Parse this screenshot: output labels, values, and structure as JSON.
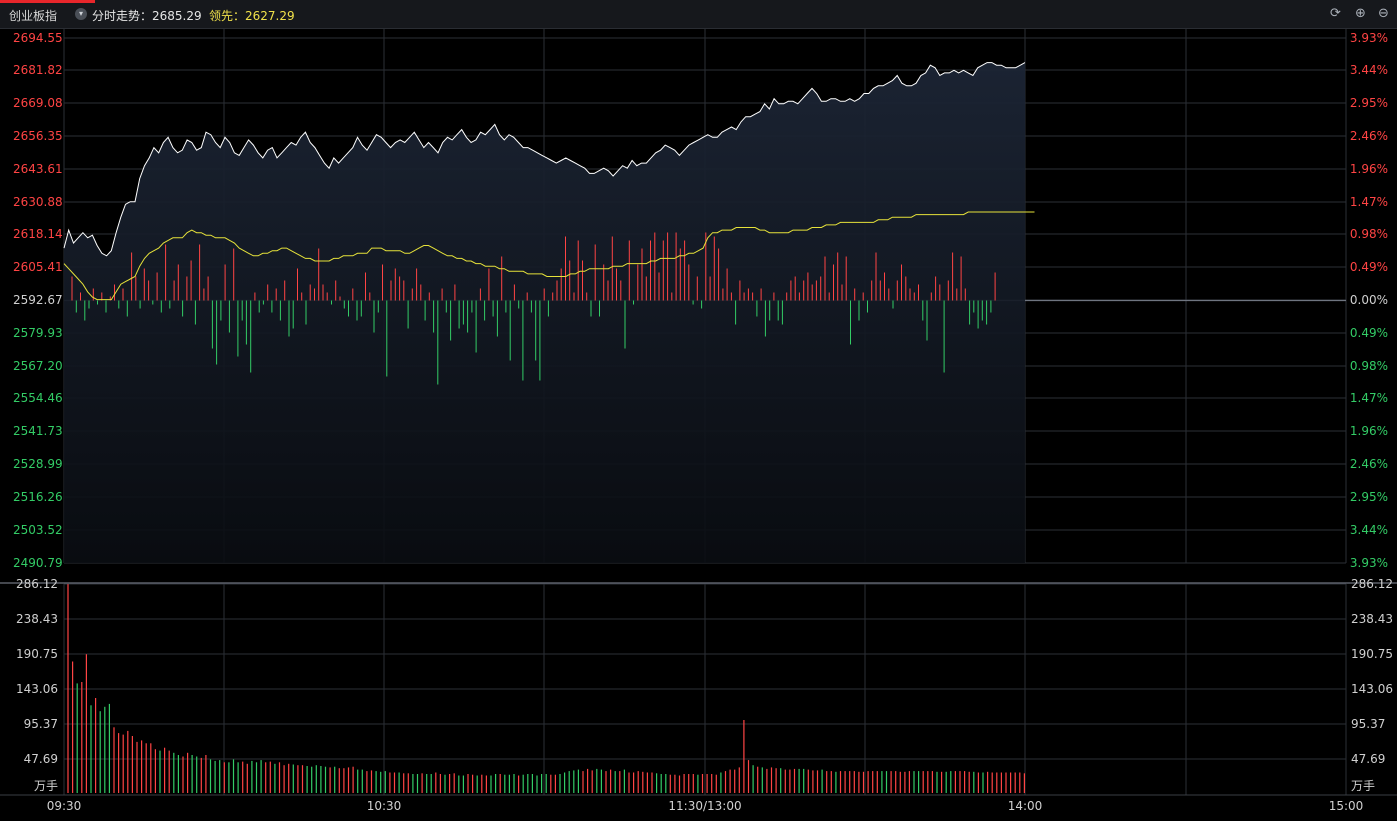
{
  "header": {
    "title": "创业板指",
    "trend_label": "分时走势：2685.29",
    "leader_label": "领先：2627.29"
  },
  "colors": {
    "up": "#ff4444",
    "down": "#33cc66",
    "price_line": "#ffffff",
    "lead_line": "#e6e23a",
    "grid": "#2b2f36"
  },
  "chart_data": [
    {
      "type": "line",
      "title": "",
      "base_price": 2592.67,
      "y_ticks_left": [
        "2694.55",
        "2681.82",
        "2669.08",
        "2656.35",
        "2643.61",
        "2630.88",
        "2618.14",
        "2605.41",
        "2592.67",
        "2579.93",
        "2567.20",
        "2554.46",
        "2541.73",
        "2528.99",
        "2516.26",
        "2503.52",
        "2490.79"
      ],
      "y_ticks_right": [
        "3.93%",
        "3.44%",
        "2.95%",
        "2.46%",
        "1.96%",
        "1.47%",
        "0.98%",
        "0.49%",
        "0.00%",
        "0.49%",
        "0.98%",
        "1.47%",
        "1.96%",
        "2.46%",
        "2.95%",
        "3.44%",
        "3.93%"
      ],
      "ylim": [
        2490.79,
        2694.55
      ],
      "x_ticks": [
        "09:30",
        "10:30",
        "11:30/13:00",
        "14:00",
        "15:00"
      ],
      "series": [
        {
          "values": [
            2613,
            2620,
            2615,
            2617,
            2619,
            2617,
            2618,
            2614,
            2611,
            2610,
            2612,
            2619,
            2625,
            2630,
            2631,
            2631,
            2640,
            2645,
            2648,
            2652,
            2650,
            2654,
            2656,
            2652,
            2650,
            2651,
            2655,
            2654,
            2651,
            2652,
            2658,
            2657,
            2654,
            2652,
            2656,
            2654,
            2650,
            2649,
            2652,
            2655,
            2653,
            2650,
            2648,
            2651,
            2652,
            2648,
            2650,
            2652,
            2654,
            2653,
            2656,
            2658,
            2654,
            2652,
            2649,
            2646,
            2644,
            2648,
            2646,
            2648,
            2650,
            2652,
            2656,
            2653,
            2651,
            2654,
            2657,
            2656,
            2654,
            2652,
            2654,
            2655,
            2654,
            2656,
            2658,
            2655,
            2652,
            2654,
            2652,
            2650,
            2654,
            2656,
            2655,
            2657,
            2659,
            2656,
            2654,
            2655,
            2658,
            2657,
            2659,
            2661,
            2657,
            2655,
            2657,
            2656,
            2654,
            2652,
            2652,
            2651,
            2650,
            2649,
            2648,
            2647,
            2646,
            2647,
            2648,
            2647,
            2646,
            2645,
            2644,
            2642,
            2642,
            2643,
            2644,
            2643,
            2641,
            2643,
            2645,
            2644,
            2647,
            2645,
            2646,
            2646,
            2648,
            2650,
            2651,
            2653,
            2652,
            2651,
            2649,
            2651,
            2653,
            2654,
            2655,
            2656,
            2657,
            2656,
            2656,
            2658,
            2659,
            2660,
            2659,
            2662,
            2664,
            2664,
            2665,
            2666,
            2669,
            2667,
            2671,
            2669,
            2669,
            2670,
            2670,
            2669,
            2671,
            2673,
            2675,
            2673,
            2670,
            2670,
            2671,
            2671,
            2670,
            2670,
            2671,
            2670,
            2671,
            2673,
            2673,
            2675,
            2676,
            2676,
            2677,
            2678,
            2680,
            2677,
            2676,
            2676,
            2677,
            2680,
            2681,
            2684,
            2683,
            2680,
            2681,
            2681,
            2682,
            2681,
            2682,
            2681,
            2680,
            2683,
            2684,
            2685,
            2685,
            2684,
            2684,
            2683,
            2683,
            2683,
            2684,
            2685
          ]
        },
        {
          "values": [
            2607,
            2605,
            2603,
            2601,
            2599,
            2596,
            2594,
            2593,
            2593,
            2593,
            2593,
            2596,
            2599,
            2600,
            2601,
            2602,
            2606,
            2609,
            2611,
            2612,
            2613,
            2615,
            2616,
            2617,
            2617,
            2617,
            2619,
            2620,
            2619,
            2619,
            2618,
            2618,
            2617,
            2617,
            2617,
            2616,
            2615,
            2613,
            2612,
            2611,
            2610,
            2610,
            2611,
            2611,
            2612,
            2612,
            2613,
            2613,
            2612,
            2611,
            2610,
            2609,
            2609,
            2608,
            2608,
            2608,
            2608,
            2609,
            2609,
            2610,
            2610,
            2610,
            2611,
            2611,
            2611,
            2613,
            2613,
            2613,
            2612,
            2612,
            2612,
            2612,
            2611,
            2611,
            2612,
            2613,
            2614,
            2614,
            2613,
            2612,
            2611,
            2610,
            2610,
            2609,
            2609,
            2608,
            2608,
            2607,
            2607,
            2606,
            2606,
            2606,
            2605,
            2605,
            2604,
            2604,
            2604,
            2604,
            2603,
            2603,
            2603,
            2603,
            2602,
            2602,
            2602,
            2602,
            2602,
            2603,
            2603,
            2604,
            2604,
            2605,
            2605,
            2605,
            2605,
            2605,
            2606,
            2606,
            2606,
            2607,
            2607,
            2607,
            2607,
            2607,
            2608,
            2608,
            2609,
            2609,
            2609,
            2609,
            2610,
            2610,
            2611,
            2611,
            2612,
            2613,
            2617,
            2619,
            2619,
            2620,
            2620,
            2620,
            2621,
            2621,
            2621,
            2621,
            2621,
            2620,
            2620,
            2619,
            2619,
            2619,
            2619,
            2619,
            2620,
            2620,
            2620,
            2620,
            2621,
            2621,
            2621,
            2622,
            2622,
            2622,
            2623,
            2623,
            2623,
            2623,
            2623,
            2623,
            2623,
            2623,
            2624,
            2624,
            2624,
            2625,
            2625,
            2625,
            2625,
            2625,
            2626,
            2626,
            2626,
            2626,
            2626,
            2626,
            2626,
            2626,
            2626,
            2626,
            2626,
            2627,
            2627,
            2627,
            2627,
            2627,
            2627,
            2627,
            2627,
            2627,
            2627,
            2627,
            2627,
            2627,
            2627,
            2627
          ]
        }
      ]
    },
    {
      "type": "bar",
      "title": "",
      "y_ticks": [
        "286.12",
        "238.43",
        "190.75",
        "143.06",
        "95.37",
        "47.69"
      ],
      "unit_label": "万手",
      "ylim": [
        0,
        286.12
      ],
      "volume_values": [
        286,
        180,
        150,
        152,
        190,
        120,
        130,
        112,
        118,
        122,
        90,
        82,
        80,
        85,
        78,
        70,
        72,
        68,
        68,
        60,
        58,
        62,
        58,
        55,
        52,
        50,
        55,
        52,
        50,
        48,
        52,
        46,
        44,
        45,
        42,
        42,
        46,
        42,
        43,
        40,
        44,
        42,
        45,
        42,
        43,
        40,
        42,
        38,
        40,
        39,
        38,
        38,
        37,
        36,
        38,
        37,
        36,
        35,
        36,
        34,
        34,
        35,
        36,
        32,
        32,
        30,
        31,
        30,
        29,
        30,
        28,
        28,
        28,
        27,
        27,
        26,
        26,
        27,
        26,
        26,
        28,
        26,
        25,
        26,
        27,
        24,
        24,
        26,
        25,
        24,
        25,
        24,
        24,
        26,
        26,
        25,
        25,
        26,
        24,
        25,
        26,
        26,
        24,
        26,
        26,
        25,
        25,
        26,
        28,
        30,
        31,
        32,
        30,
        33,
        31,
        33,
        32,
        30,
        32,
        30,
        30,
        32,
        28,
        28,
        30,
        29,
        28,
        28,
        27,
        26,
        26,
        25,
        25,
        24,
        26,
        26,
        26,
        25,
        26,
        26,
        26,
        25,
        28,
        30,
        32,
        32,
        35,
        100,
        45,
        38,
        36,
        35,
        33,
        35,
        34,
        34,
        32,
        32,
        33,
        33,
        33,
        32,
        31,
        31,
        32,
        30,
        30,
        29,
        30,
        30,
        30,
        30,
        29,
        29,
        30,
        30,
        30,
        30,
        30,
        30,
        30,
        29,
        29,
        30,
        30,
        30,
        30,
        30,
        30,
        29,
        29,
        29,
        30,
        30,
        30,
        30,
        29,
        29,
        28,
        28,
        29,
        28,
        28,
        28,
        28,
        28,
        28,
        28,
        27
      ]
    }
  ],
  "breadth_values": [
    0.6,
    -0.3,
    0.2,
    -0.5,
    -0.2,
    0.3,
    -0.1,
    0.2,
    -0.3,
    0.1,
    0.4,
    -0.2,
    0.3,
    -0.4,
    1.2,
    0.6,
    -0.2,
    0.8,
    0.5,
    -0.1,
    0.7,
    -0.3,
    1.4,
    -0.2,
    0.5,
    0.9,
    -0.4,
    0.6,
    1.0,
    -0.6,
    1.4,
    0.3,
    0.6,
    -1.2,
    -1.6,
    -0.5,
    0.9,
    -0.8,
    1.3,
    -1.4,
    -0.5,
    -1.1,
    -1.8,
    0.2,
    -0.3,
    -0.1,
    0.4,
    -0.3,
    0.3,
    -0.5,
    0.5,
    -0.9,
    -0.7,
    0.8,
    0.2,
    -0.6,
    0.4,
    0.3,
    1.3,
    0.4,
    0.2,
    -0.1,
    0.5,
    0.1,
    -0.2,
    -0.4,
    0.3,
    -0.5,
    -0.4,
    0.7,
    0.2,
    -0.8,
    -0.3,
    0.9,
    -1.9,
    0.5,
    0.8,
    0.6,
    0.5,
    -0.7,
    0.3,
    0.8,
    0.4,
    -0.5,
    0.2,
    -0.8,
    -2.1,
    0.3,
    -0.3,
    -1.0,
    0.4,
    -0.7,
    -0.6,
    -0.8,
    -0.3,
    -1.3,
    0.3,
    -0.5,
    0.8,
    -0.4,
    -0.9,
    1.1,
    -0.3,
    -1.5,
    0.4,
    -0.2,
    -2.0,
    0.2,
    -0.3,
    -1.5,
    -2.0,
    0.3,
    -0.4,
    0.2,
    0.5,
    0.8,
    1.6,
    1.0,
    0.2,
    1.5,
    1.0,
    0.2,
    -0.4,
    1.4,
    -0.4,
    0.9,
    0.5,
    1.6,
    0.8,
    0.5,
    -1.2,
    1.5,
    -0.1,
    0.9,
    1.3,
    0.6,
    1.5,
    1.7,
    0.7,
    1.5,
    1.7,
    0.2,
    1.7,
    1.3,
    1.5,
    0.9,
    -0.1,
    0.6,
    -0.2,
    1.7,
    0.6,
    1.6,
    1.3,
    0.3,
    0.8,
    0.2,
    -0.6,
    0.5,
    0.2,
    0.3,
    0.2,
    -0.4,
    0.3,
    -0.9,
    -0.5,
    0.2,
    -0.5,
    -0.6,
    0.2,
    0.5,
    0.6,
    0.2,
    0.5,
    0.7,
    0.4,
    0.5,
    0.6,
    1.1,
    0.2,
    0.9,
    1.2,
    0.4,
    1.1,
    -1.1,
    0.3,
    -0.5,
    0.2,
    -0.3,
    0.5,
    1.2,
    0.5,
    0.7,
    0.3,
    -0.2,
    0.5,
    0.9,
    0.6,
    0.3,
    0.2,
    0.4,
    -0.5,
    -1.0,
    0.2,
    0.6,
    0.4,
    -1.8,
    0.5,
    1.2,
    0.3,
    1.1,
    0.3,
    -0.6,
    -0.3,
    -0.7,
    -0.5,
    -0.6,
    -0.3,
    0.7
  ]
}
